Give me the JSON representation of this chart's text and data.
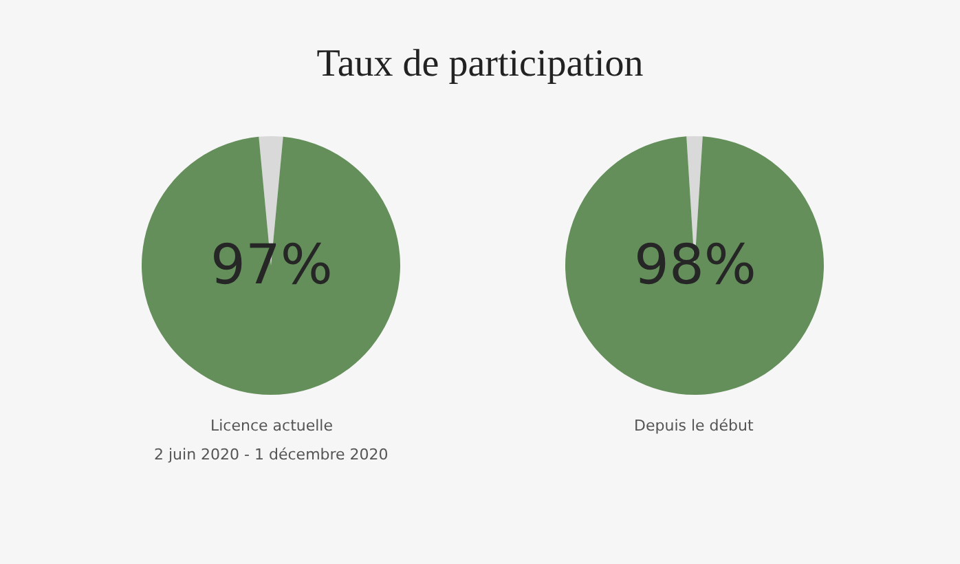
{
  "chart_data": [
    {
      "type": "pie",
      "title": "Taux de participation",
      "categories": [
        null,
        null
      ],
      "values": [
        3,
        97
      ],
      "colors": [
        "#d9d9d9",
        "#648f5a"
      ],
      "value_labels": [
        null,
        "97%"
      ],
      "annotations": [
        "Licence actuelle",
        "2 juin 2020 - 1 décembre 2020"
      ]
    },
    {
      "type": "pie",
      "categories": [
        null,
        null
      ],
      "values": [
        2,
        98
      ],
      "colors": [
        "#d9d9d9",
        "#648f5a"
      ],
      "value_labels": [
        null,
        "98%"
      ],
      "annotations": [
        "Depuis le début"
      ]
    }
  ]
}
